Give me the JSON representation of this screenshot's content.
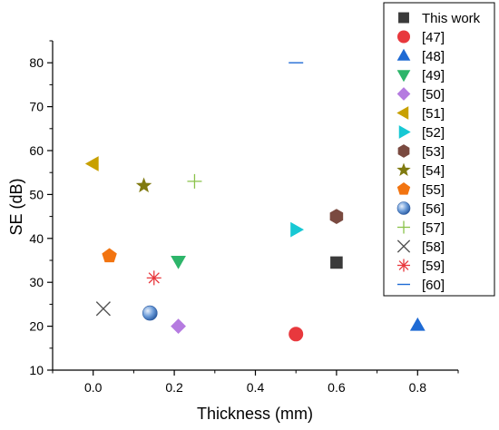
{
  "chart_data": {
    "type": "scatter",
    "xlabel": "Thickness (mm)",
    "ylabel": "SE (dB)",
    "xlim": [
      -0.1,
      0.9
    ],
    "ylim": [
      10,
      85
    ],
    "x_ticks": [
      "0.0",
      "0.2",
      "0.4",
      "0.6",
      "0.8"
    ],
    "y_ticks": [
      "10",
      "20",
      "30",
      "40",
      "50",
      "60",
      "70",
      "80"
    ],
    "grid": false,
    "legend_position": "outside-right",
    "series": [
      {
        "name": "This work",
        "marker": "square",
        "color": "#3a3a3a",
        "x": 0.6,
        "y": 34.5
      },
      {
        "name": "[47]",
        "marker": "circle",
        "color": "#e8383d",
        "x": 0.5,
        "y": 18.2
      },
      {
        "name": "[48]",
        "marker": "triangle-up",
        "color": "#1e6ad4",
        "x": 0.8,
        "y": 20.2
      },
      {
        "name": "[49]",
        "marker": "triangle-down",
        "color": "#2db56a",
        "x": 0.21,
        "y": 34.8
      },
      {
        "name": "[50]",
        "marker": "diamond",
        "color": "#b57be0",
        "x": 0.21,
        "y": 20.0
      },
      {
        "name": "[51]",
        "marker": "triangle-left",
        "color": "#c8a000",
        "x": 0.0,
        "y": 57.0
      },
      {
        "name": "[52]",
        "marker": "triangle-right",
        "color": "#17c8d4",
        "x": 0.5,
        "y": 42.0
      },
      {
        "name": "[53]",
        "marker": "hexagon",
        "color": "#7a4a40",
        "x": 0.6,
        "y": 45.0
      },
      {
        "name": "[54]",
        "marker": "star",
        "color": "#807a10",
        "x": 0.125,
        "y": 52.0
      },
      {
        "name": "[55]",
        "marker": "pentagon",
        "color": "#f27410",
        "x": 0.04,
        "y": 36.0
      },
      {
        "name": "[56]",
        "marker": "sphere",
        "color": "#4a7ec8",
        "x": 0.14,
        "y": 23.0
      },
      {
        "name": "[57]",
        "marker": "plus",
        "color": "#8ac24a",
        "x": 0.25,
        "y": 53.0
      },
      {
        "name": "[58]",
        "marker": "x",
        "color": "#555555",
        "x": 0.025,
        "y": 24.0
      },
      {
        "name": "[59]",
        "marker": "asterisk",
        "color": "#e8383d",
        "x": 0.15,
        "y": 31.0
      },
      {
        "name": "[60]",
        "marker": "dash",
        "color": "#1e6ad4",
        "x": 0.5,
        "y": 80.0
      }
    ]
  }
}
